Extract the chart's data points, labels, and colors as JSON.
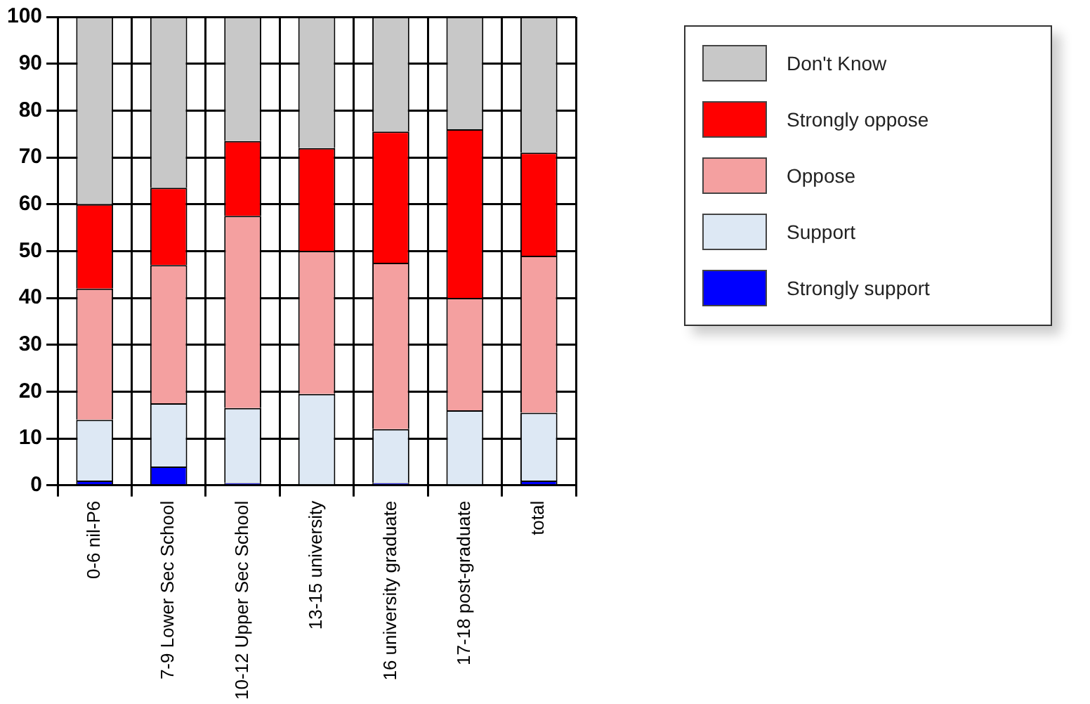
{
  "chart_data": {
    "type": "bar",
    "stacked": true,
    "grid": true,
    "legend": "right",
    "categories": [
      "0-6 nil-P6",
      "7-9 Lower Sec School",
      "10-12 Upper Sec School",
      "13-15 university",
      "16 university graduate",
      "17-18 post-graduate",
      "total"
    ],
    "ylim": [
      0,
      100
    ],
    "yticks": [
      0,
      10,
      20,
      30,
      40,
      50,
      60,
      70,
      80,
      90,
      100
    ],
    "series": [
      {
        "name": "Strongly support",
        "color": "#0000ff",
        "values": [
          1,
          4,
          0.5,
          0,
          0.5,
          0,
          1
        ]
      },
      {
        "name": "Support",
        "color": "#dde8f4",
        "values": [
          13,
          13.5,
          16,
          19.5,
          11.5,
          16,
          14.5
        ]
      },
      {
        "name": "Oppose",
        "color": "#f4a0a0",
        "values": [
          28,
          29.5,
          41,
          30.5,
          35.5,
          24,
          33.5
        ]
      },
      {
        "name": "Strongly oppose",
        "color": "#ff0000",
        "values": [
          18,
          16.5,
          16,
          22,
          28,
          36,
          22
        ]
      },
      {
        "name": "Don't Know",
        "color": "#c8c8c8",
        "values": [
          40,
          36.5,
          26.5,
          28,
          24.5,
          24,
          29
        ]
      }
    ]
  }
}
